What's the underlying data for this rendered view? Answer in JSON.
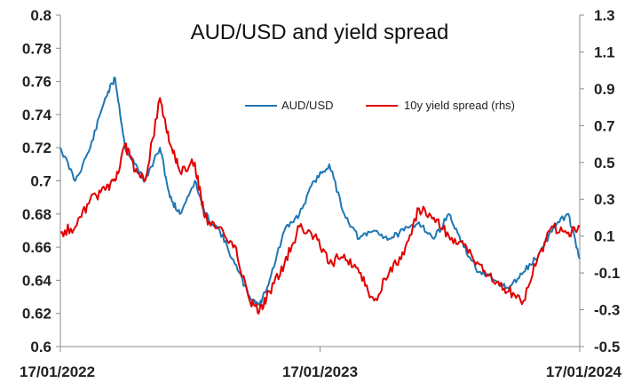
{
  "chart_data": {
    "type": "line",
    "title": "AUD/USD and yield spread",
    "xlabel": "",
    "ylabel": "",
    "x_tick_labels": [
      "17/01/2022",
      "17/01/2023",
      "17/01/2024"
    ],
    "y_left": {
      "min": 0.6,
      "max": 0.8,
      "ticks": [
        "0.6",
        "0.62",
        "0.64",
        "0.66",
        "0.68",
        "0.7",
        "0.72",
        "0.74",
        "0.76",
        "0.78",
        "0.8"
      ]
    },
    "y_right": {
      "min": -0.5,
      "max": 1.3,
      "ticks": [
        "-0.5",
        "-0.3",
        "-0.1",
        "0.1",
        "0.3",
        "0.5",
        "0.7",
        "0.9",
        "1.1",
        "1.3"
      ]
    },
    "legend_position": "top-right",
    "series": [
      {
        "name": "AUD/USD",
        "axis": "left",
        "color": "#1f77b4",
        "x": [
          "2022-01-17",
          "2022-02-07",
          "2022-02-28",
          "2022-03-21",
          "2022-04-04",
          "2022-04-18",
          "2022-05-02",
          "2022-05-16",
          "2022-06-06",
          "2022-06-20",
          "2022-07-04",
          "2022-07-25",
          "2022-08-08",
          "2022-08-29",
          "2022-09-19",
          "2022-10-10",
          "2022-10-24",
          "2022-11-07",
          "2022-11-28",
          "2022-12-19",
          "2023-01-09",
          "2023-01-30",
          "2023-02-20",
          "2023-03-13",
          "2023-04-03",
          "2023-04-24",
          "2023-05-15",
          "2023-06-05",
          "2023-06-26",
          "2023-07-17",
          "2023-08-07",
          "2023-08-28",
          "2023-09-18",
          "2023-10-09",
          "2023-10-30",
          "2023-11-20",
          "2023-12-11",
          "2024-01-01",
          "2024-01-17"
        ],
        "values": [
          0.72,
          0.7,
          0.72,
          0.75,
          0.762,
          0.72,
          0.71,
          0.7,
          0.72,
          0.69,
          0.68,
          0.7,
          0.68,
          0.67,
          0.65,
          0.63,
          0.625,
          0.64,
          0.67,
          0.68,
          0.7,
          0.71,
          0.68,
          0.665,
          0.67,
          0.665,
          0.67,
          0.675,
          0.665,
          0.68,
          0.66,
          0.645,
          0.64,
          0.635,
          0.645,
          0.655,
          0.672,
          0.68,
          0.653
        ]
      },
      {
        "name": "10y yield spread (rhs)",
        "axis": "right",
        "color": "#e00000",
        "x": [
          "2022-01-17",
          "2022-02-07",
          "2022-02-28",
          "2022-03-21",
          "2022-04-04",
          "2022-04-18",
          "2022-05-02",
          "2022-05-16",
          "2022-06-06",
          "2022-06-20",
          "2022-07-04",
          "2022-07-25",
          "2022-08-08",
          "2022-08-29",
          "2022-09-19",
          "2022-10-10",
          "2022-10-24",
          "2022-11-07",
          "2022-11-28",
          "2022-12-19",
          "2023-01-09",
          "2023-01-30",
          "2023-02-20",
          "2023-03-13",
          "2023-04-03",
          "2023-04-24",
          "2023-05-15",
          "2023-06-05",
          "2023-06-26",
          "2023-07-17",
          "2023-08-07",
          "2023-08-28",
          "2023-09-18",
          "2023-10-09",
          "2023-10-30",
          "2023-11-20",
          "2023-12-11",
          "2024-01-01",
          "2024-01-17"
        ],
        "values": [
          0.12,
          0.15,
          0.3,
          0.35,
          0.4,
          0.6,
          0.45,
          0.4,
          0.85,
          0.6,
          0.45,
          0.5,
          0.2,
          0.15,
          0.05,
          -0.25,
          -0.3,
          -0.2,
          -0.05,
          0.15,
          0.1,
          -0.05,
          0.0,
          -0.1,
          -0.25,
          -0.1,
          0.0,
          0.25,
          0.2,
          0.1,
          0.05,
          -0.05,
          -0.15,
          -0.2,
          -0.25,
          0.0,
          0.15,
          0.12,
          0.15
        ]
      }
    ]
  }
}
